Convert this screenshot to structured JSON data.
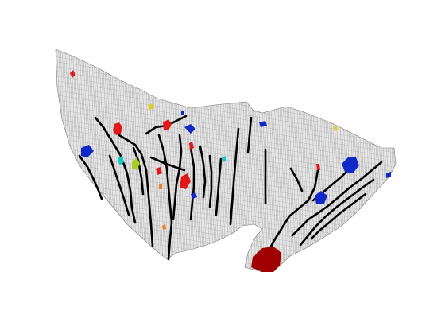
{
  "figure": {
    "kind": "3d-terrain-mesh",
    "background_color": "#ffffff",
    "mesh_fill_color": "#e6e6e6",
    "mesh_line_color": "#7a7a7a",
    "channel_color": "#000000",
    "palette": {
      "dark_red": "#a00000",
      "red": "#e01818",
      "blue": "#1028c8",
      "cyan": "#18c8c8",
      "yellow": "#e0d020",
      "yellow_green": "#a8d020",
      "orange": "#f08020"
    }
  }
}
